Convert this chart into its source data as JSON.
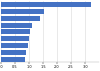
{
  "values": [
    3.2,
    1.55,
    1.4,
    1.1,
    1.05,
    1.0,
    0.95,
    0.9,
    0.85
  ],
  "bar_color": "#4472c4",
  "background_color": "#ffffff",
  "xlim": [
    0,
    3.5
  ],
  "grid_color": "#d9d9d9",
  "bar_height": 0.75,
  "xticks": [
    0,
    0.5,
    1,
    1.5,
    2,
    2.5,
    3
  ]
}
